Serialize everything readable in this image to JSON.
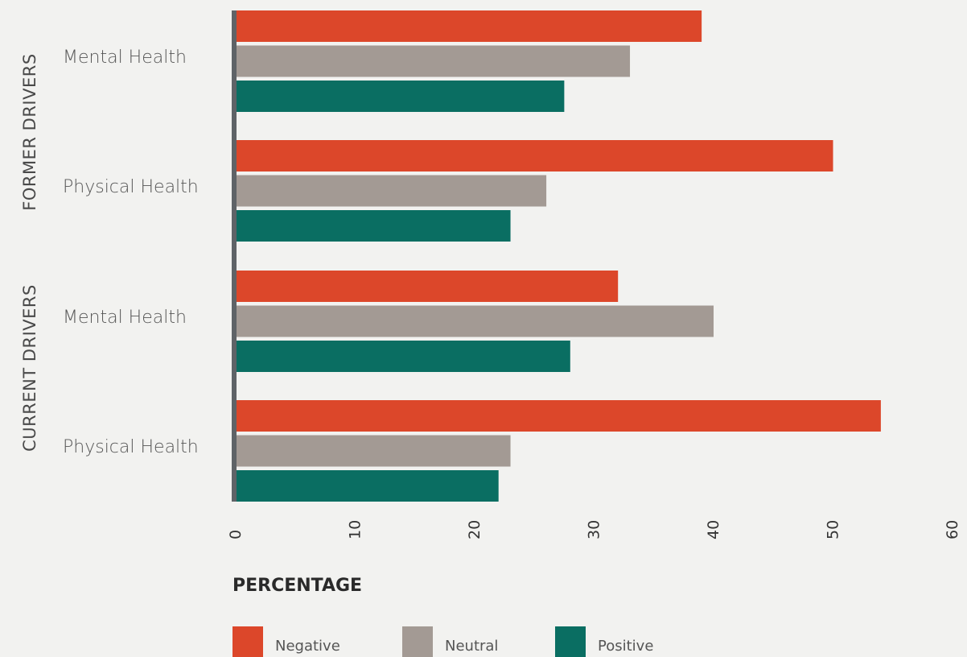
{
  "chart_data": {
    "type": "bar",
    "orientation": "horizontal",
    "title": "",
    "xlabel": "PERCENTAGE",
    "ylabel": "",
    "xlim": [
      0,
      60
    ],
    "xticks": [
      "0",
      "10",
      "20",
      "30",
      "40",
      "50",
      "60"
    ],
    "grid": false,
    "legend_position": "bottom-left",
    "groups": [
      {
        "label": "FORMER DRIVERS",
        "categories": [
          "Mental Health",
          "Physical Health"
        ]
      },
      {
        "label": "CURRENT DRIVERS",
        "categories": [
          "Mental Health",
          "Physical Health"
        ]
      }
    ],
    "categories": [
      "Mental Health",
      "Physical Health",
      "Mental Health",
      "Physical Health"
    ],
    "series": [
      {
        "name": "Negative",
        "color": "#dc472a",
        "values": [
          39,
          50,
          32,
          54
        ]
      },
      {
        "name": "Neutral",
        "color": "#a39a94",
        "values": [
          33,
          26,
          40,
          23
        ]
      },
      {
        "name": "Positive",
        "color": "#0a6e62",
        "values": [
          27.5,
          23,
          28,
          22
        ]
      }
    ]
  }
}
